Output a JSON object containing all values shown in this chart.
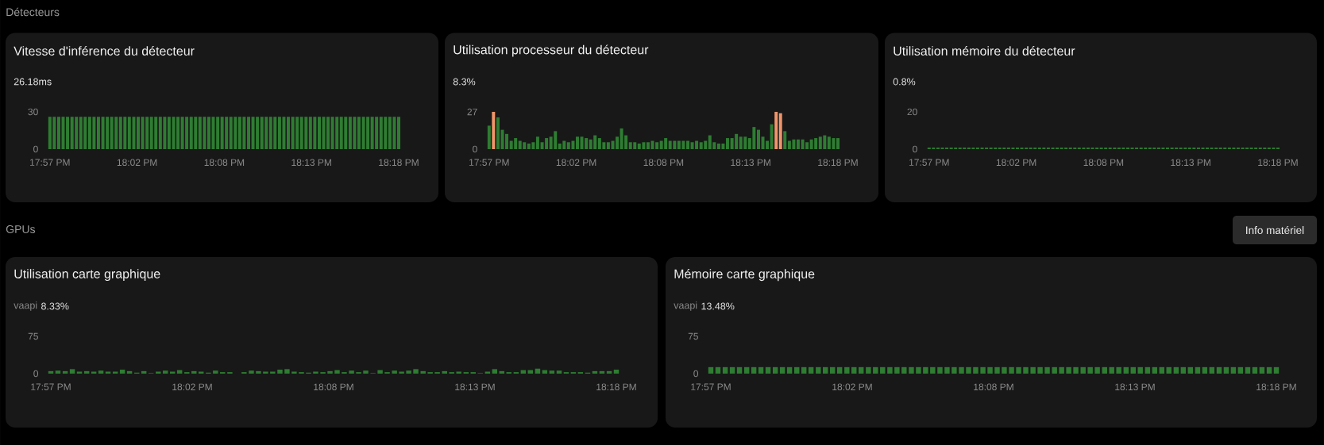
{
  "chart_data": [
    {
      "type": "bar",
      "title": "Vitesse d'inférence du détecteur",
      "annotations": [
        "Détecteurs",
        "26.18ms"
      ],
      "color": "#2e7d32",
      "x": [
        17.95,
        17.9544,
        17.9589,
        17.9633,
        17.9677,
        17.9722,
        17.9766,
        17.981,
        17.9854,
        17.9899,
        17.9943,
        17.9987,
        18.0032,
        18.0076,
        18.012,
        18.0165,
        18.0209,
        18.0253,
        18.0297,
        18.0342,
        18.0386,
        18.043,
        18.0475,
        18.0519,
        18.0563,
        18.0608,
        18.0652,
        18.0696,
        18.0741,
        18.0785,
        18.0829,
        18.0873,
        18.0918,
        18.0962,
        18.1006,
        18.1051,
        18.1095,
        18.1139,
        18.1184,
        18.1228,
        18.1272,
        18.1316,
        18.1361,
        18.1405,
        18.1449,
        18.1494,
        18.1538,
        18.1582,
        18.1627,
        18.1671,
        18.1715,
        18.1759,
        18.1804,
        18.1848,
        18.1892,
        18.1937,
        18.1981,
        18.2025,
        18.207,
        18.2114,
        18.2158,
        18.2203,
        18.2247,
        18.2291,
        18.2335,
        18.238,
        18.2424,
        18.2468,
        18.2513,
        18.2557,
        18.2601,
        18.2646,
        18.269,
        18.2734,
        18.2778,
        18.2823,
        18.2867,
        18.2911,
        18.2956,
        18.3
      ],
      "values": [
        26,
        26,
        26,
        26,
        26,
        26,
        26,
        26,
        26,
        26,
        26,
        26,
        26,
        26,
        26,
        26,
        26,
        26,
        26,
        26,
        26,
        26,
        26,
        26,
        26,
        26,
        26,
        26,
        26,
        26,
        26,
        26,
        26,
        26,
        26,
        26,
        26,
        26,
        26,
        26,
        26,
        26,
        26,
        26,
        26,
        26,
        26,
        26,
        26,
        26,
        26,
        26,
        26,
        26,
        26,
        26,
        26,
        26,
        26,
        26,
        26,
        26,
        26,
        26,
        26,
        26,
        26,
        26,
        26,
        26,
        26,
        26,
        26,
        26,
        26,
        26,
        26,
        26,
        26,
        26
      ],
      "xlim": [
        17.95,
        18.3
      ],
      "xticks": [
        {
          "value": 17.95,
          "label": "17:57 PM"
        },
        {
          "value": 18.0375,
          "label": "18:02 PM"
        },
        {
          "value": 18.125,
          "label": "18:08 PM"
        },
        {
          "value": 18.2125,
          "label": "18:13 PM"
        },
        {
          "value": 18.3,
          "label": "18:18 PM"
        }
      ],
      "ylim": [
        0,
        30
      ],
      "yticks": [
        0,
        30
      ]
    },
    {
      "type": "bar",
      "title": "Utilisation processeur du détecteur",
      "annotations": [
        "8.3%"
      ],
      "colors": [
        "#2e7d32",
        "#f0956a",
        "#2e7d32",
        "#2e7d32",
        "#2e7d32",
        "#2e7d32",
        "#2e7d32",
        "#2e7d32",
        "#2e7d32",
        "#2e7d32",
        "#2e7d32",
        "#2e7d32",
        "#2e7d32",
        "#2e7d32",
        "#2e7d32",
        "#2e7d32",
        "#2e7d32",
        "#2e7d32",
        "#2e7d32",
        "#2e7d32",
        "#2e7d32",
        "#2e7d32",
        "#2e7d32",
        "#2e7d32",
        "#2e7d32",
        "#2e7d32",
        "#2e7d32",
        "#2e7d32",
        "#2e7d32",
        "#2e7d32",
        "#2e7d32",
        "#2e7d32",
        "#2e7d32",
        "#2e7d32",
        "#2e7d32",
        "#2e7d32",
        "#2e7d32",
        "#2e7d32",
        "#2e7d32",
        "#2e7d32",
        "#2e7d32",
        "#2e7d32",
        "#2e7d32",
        "#2e7d32",
        "#2e7d32",
        "#2e7d32",
        "#2e7d32",
        "#2e7d32",
        "#2e7d32",
        "#2e7d32",
        "#2e7d32",
        "#2e7d32",
        "#2e7d32",
        "#2e7d32",
        "#2e7d32",
        "#2e7d32",
        "#2e7d32",
        "#2e7d32",
        "#2e7d32",
        "#2e7d32",
        "#2e7d32",
        "#2e7d32",
        "#2e7d32",
        "#2e7d32",
        "#2e7d32",
        "#f0956a",
        "#f0956a",
        "#2e7d32",
        "#2e7d32",
        "#2e7d32",
        "#2e7d32",
        "#2e7d32",
        "#2e7d32",
        "#2e7d32",
        "#2e7d32",
        "#2e7d32",
        "#2e7d32",
        "#2e7d32",
        "#2e7d32",
        "#2e7d32"
      ],
      "x": [
        17.95,
        17.9544,
        17.9589,
        17.9633,
        17.9677,
        17.9722,
        17.9766,
        17.981,
        17.9854,
        17.9899,
        17.9943,
        17.9987,
        18.0032,
        18.0076,
        18.012,
        18.0165,
        18.0209,
        18.0253,
        18.0297,
        18.0342,
        18.0386,
        18.043,
        18.0475,
        18.0519,
        18.0563,
        18.0608,
        18.0652,
        18.0696,
        18.0741,
        18.0785,
        18.0829,
        18.0873,
        18.0918,
        18.0962,
        18.1006,
        18.1051,
        18.1095,
        18.1139,
        18.1184,
        18.1228,
        18.1272,
        18.1316,
        18.1361,
        18.1405,
        18.1449,
        18.1494,
        18.1538,
        18.1582,
        18.1627,
        18.1671,
        18.1715,
        18.1759,
        18.1804,
        18.1848,
        18.1892,
        18.1937,
        18.1981,
        18.2025,
        18.207,
        18.2114,
        18.2158,
        18.2203,
        18.2247,
        18.2291,
        18.2335,
        18.238,
        18.2424,
        18.2468,
        18.2513,
        18.2557,
        18.2601,
        18.2646,
        18.269,
        18.2734,
        18.2778,
        18.2823,
        18.2867,
        18.2911,
        18.2956,
        18.3
      ],
      "values": [
        17,
        27,
        23,
        14,
        11,
        6,
        8,
        6,
        5,
        4,
        5,
        9,
        5,
        8,
        9,
        13,
        4,
        6,
        5,
        6,
        9,
        9,
        8,
        7,
        10,
        8,
        5,
        5,
        6,
        9,
        15,
        10,
        5,
        5,
        4,
        5,
        5,
        6,
        5,
        6,
        8,
        6,
        6,
        6,
        6,
        6,
        5,
        6,
        5,
        6,
        10,
        5,
        4,
        4,
        8,
        8,
        11,
        9,
        9,
        8,
        16,
        14,
        9,
        6,
        18,
        27,
        26,
        13,
        6,
        7,
        7,
        7,
        5,
        7,
        8,
        9,
        10,
        9,
        8,
        8
      ],
      "xlim": [
        17.95,
        18.3
      ],
      "xticks": [
        {
          "value": 17.95,
          "label": "17:57 PM"
        },
        {
          "value": 18.0375,
          "label": "18:02 PM"
        },
        {
          "value": 18.125,
          "label": "18:08 PM"
        },
        {
          "value": 18.2125,
          "label": "18:13 PM"
        },
        {
          "value": 18.3,
          "label": "18:18 PM"
        }
      ],
      "ylim": [
        0,
        27
      ],
      "yticks": [
        0,
        27
      ]
    },
    {
      "type": "bar",
      "title": "Utilisation mémoire du détecteur",
      "annotations": [
        "0.8%"
      ],
      "color": "#2e7d32",
      "x": [
        17.95,
        17.9544,
        17.9589,
        17.9633,
        17.9677,
        17.9722,
        17.9766,
        17.981,
        17.9854,
        17.9899,
        17.9943,
        17.9987,
        18.0032,
        18.0076,
        18.012,
        18.0165,
        18.0209,
        18.0253,
        18.0297,
        18.0342,
        18.0386,
        18.043,
        18.0475,
        18.0519,
        18.0563,
        18.0608,
        18.0652,
        18.0696,
        18.0741,
        18.0785,
        18.0829,
        18.0873,
        18.0918,
        18.0962,
        18.1006,
        18.1051,
        18.1095,
        18.1139,
        18.1184,
        18.1228,
        18.1272,
        18.1316,
        18.1361,
        18.1405,
        18.1449,
        18.1494,
        18.1538,
        18.1582,
        18.1627,
        18.1671,
        18.1715,
        18.1759,
        18.1804,
        18.1848,
        18.1892,
        18.1937,
        18.1981,
        18.2025,
        18.207,
        18.2114,
        18.2158,
        18.2203,
        18.2247,
        18.2291,
        18.2335,
        18.238,
        18.2424,
        18.2468,
        18.2513,
        18.2557,
        18.2601,
        18.2646,
        18.269,
        18.2734,
        18.2778,
        18.2823,
        18.2867,
        18.2911,
        18.2956,
        18.3
      ],
      "values": [
        0.8,
        0.8,
        0.8,
        0.8,
        0.8,
        0.8,
        0.8,
        0.8,
        0.8,
        0.8,
        0.8,
        0.8,
        0.8,
        0.8,
        0.8,
        0.8,
        0.8,
        0.8,
        0.8,
        0.8,
        0.8,
        0.8,
        0.8,
        0.8,
        0.8,
        0.8,
        0.8,
        0.8,
        0.8,
        0.8,
        0.8,
        0.8,
        0.8,
        0.8,
        0.8,
        0.8,
        0.8,
        0.8,
        0.8,
        0.8,
        0.8,
        0.8,
        0.8,
        0.8,
        0.8,
        0.8,
        0.8,
        0.8,
        0.8,
        0.8,
        0.8,
        0.8,
        0.8,
        0.8,
        0.8,
        0.8,
        0.8,
        0.8,
        0.8,
        0.8,
        0.8,
        0.8,
        0.8,
        0.8,
        0.8,
        0.8,
        0.8,
        0.8,
        0.8,
        0.8,
        0.8,
        0.8,
        0.8,
        0.8,
        0.8,
        0.8,
        0.8,
        0.8,
        0.8,
        0.8
      ],
      "xlim": [
        17.95,
        18.3
      ],
      "xticks": [
        {
          "value": 17.95,
          "label": "17:57 PM"
        },
        {
          "value": 18.0375,
          "label": "18:02 PM"
        },
        {
          "value": 18.125,
          "label": "18:08 PM"
        },
        {
          "value": 18.2125,
          "label": "18:13 PM"
        },
        {
          "value": 18.3,
          "label": "18:18 PM"
        }
      ],
      "ylim": [
        0,
        20
      ],
      "yticks": [
        0,
        20
      ]
    },
    {
      "type": "bar",
      "title": "Utilisation carte graphique",
      "annotations": [
        "GPUs",
        "vaapi",
        "8.33%"
      ],
      "color": "#2e7d32",
      "x": [
        17.95,
        17.9544,
        17.9589,
        17.9633,
        17.9677,
        17.9722,
        17.9766,
        17.981,
        17.9854,
        17.9899,
        17.9943,
        17.9987,
        18.0032,
        18.0076,
        18.012,
        18.0165,
        18.0209,
        18.0253,
        18.0297,
        18.0342,
        18.0386,
        18.043,
        18.0475,
        18.0519,
        18.0563,
        18.0608,
        18.0652,
        18.0696,
        18.0741,
        18.0785,
        18.0829,
        18.0873,
        18.0918,
        18.0962,
        18.1006,
        18.1051,
        18.1095,
        18.1139,
        18.1184,
        18.1228,
        18.1272,
        18.1316,
        18.1361,
        18.1405,
        18.1449,
        18.1494,
        18.1538,
        18.1582,
        18.1627,
        18.1671,
        18.1715,
        18.1759,
        18.1804,
        18.1848,
        18.1892,
        18.1937,
        18.1981,
        18.2025,
        18.207,
        18.2114,
        18.2158,
        18.2203,
        18.2247,
        18.2291,
        18.2335,
        18.238,
        18.2424,
        18.2468,
        18.2513,
        18.2557,
        18.2601,
        18.2646,
        18.269,
        18.2734,
        18.2778,
        18.2823,
        18.2867,
        18.2911,
        18.2956,
        18.3
      ],
      "values": [
        5,
        6,
        5,
        9,
        4,
        5,
        4,
        6,
        4,
        4,
        8,
        5,
        2,
        5,
        1,
        4,
        6,
        4,
        7,
        3,
        5,
        4,
        2,
        6,
        3,
        3,
        null,
        3,
        6,
        5,
        4,
        4,
        8,
        9,
        4,
        3,
        2,
        4,
        3,
        5,
        7,
        3,
        6,
        3,
        6,
        1,
        7,
        3,
        6,
        4,
        6,
        9,
        5,
        3,
        3,
        5,
        3,
        4,
        3,
        3,
        1,
        4,
        9,
        5,
        3,
        3,
        7,
        7,
        10,
        7,
        6,
        6,
        3,
        3,
        3,
        2,
        5,
        5,
        5,
        8
      ],
      "xlim": [
        17.95,
        18.3
      ],
      "xticks": [
        {
          "value": 17.95,
          "label": "17:57 PM"
        },
        {
          "value": 18.0375,
          "label": "18:02 PM"
        },
        {
          "value": 18.125,
          "label": "18:08 PM"
        },
        {
          "value": 18.2125,
          "label": "18:13 PM"
        },
        {
          "value": 18.3,
          "label": "18:18 PM"
        }
      ],
      "ylim": [
        0,
        75
      ],
      "yticks": [
        0,
        75
      ]
    },
    {
      "type": "bar",
      "title": "Mémoire carte graphique",
      "annotations": [
        "vaapi",
        "13.48%",
        "Info matériel"
      ],
      "color": "#2e7d32",
      "x": [
        17.95,
        17.9544,
        17.9589,
        17.9633,
        17.9677,
        17.9722,
        17.9766,
        17.981,
        17.9854,
        17.9899,
        17.9943,
        17.9987,
        18.0032,
        18.0076,
        18.012,
        18.0165,
        18.0209,
        18.0253,
        18.0297,
        18.0342,
        18.0386,
        18.043,
        18.0475,
        18.0519,
        18.0563,
        18.0608,
        18.0652,
        18.0696,
        18.0741,
        18.0785,
        18.0829,
        18.0873,
        18.0918,
        18.0962,
        18.1006,
        18.1051,
        18.1095,
        18.1139,
        18.1184,
        18.1228,
        18.1272,
        18.1316,
        18.1361,
        18.1405,
        18.1449,
        18.1494,
        18.1538,
        18.1582,
        18.1627,
        18.1671,
        18.1715,
        18.1759,
        18.1804,
        18.1848,
        18.1892,
        18.1937,
        18.1981,
        18.2025,
        18.207,
        18.2114,
        18.2158,
        18.2203,
        18.2247,
        18.2291,
        18.2335,
        18.238,
        18.2424,
        18.2468,
        18.2513,
        18.2557,
        18.2601,
        18.2646,
        18.269,
        18.2734,
        18.2778,
        18.2823,
        18.2867,
        18.2911,
        18.2956,
        18.3
      ],
      "values": [
        13,
        13,
        13,
        13,
        13,
        13,
        13,
        13,
        13,
        13,
        13,
        13,
        13,
        13,
        13,
        13,
        13,
        13,
        13,
        13,
        13,
        13,
        13,
        13,
        13,
        13,
        13,
        13,
        13,
        13,
        13,
        13,
        13,
        13,
        13,
        13,
        13,
        13,
        13,
        13,
        13,
        13,
        13,
        13,
        13,
        13,
        13,
        13,
        13,
        13,
        13,
        13,
        13,
        13,
        13,
        13,
        13,
        13,
        13,
        13,
        13,
        13,
        13,
        13,
        13,
        13,
        13,
        13,
        13,
        13,
        13,
        13,
        13,
        13,
        13,
        13,
        13,
        13,
        13,
        13
      ],
      "xlim": [
        17.95,
        18.3
      ],
      "xticks": [
        {
          "value": 17.95,
          "label": "17:57 PM"
        },
        {
          "value": 18.0375,
          "label": "18:02 PM"
        },
        {
          "value": 18.125,
          "label": "18:08 PM"
        },
        {
          "value": 18.2125,
          "label": "18:13 PM"
        },
        {
          "value": 18.3,
          "label": "18:18 PM"
        }
      ],
      "ylim": [
        0,
        75
      ],
      "yticks": [
        0,
        75
      ]
    }
  ]
}
